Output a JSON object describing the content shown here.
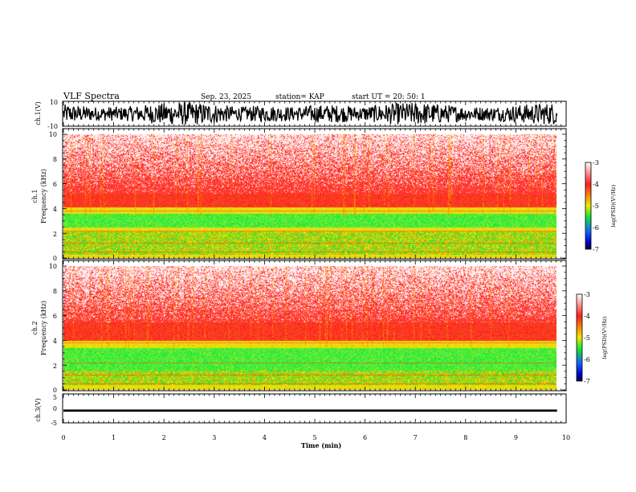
{
  "header": {
    "title": "VLF Spectra",
    "date": "Sep. 23, 2025",
    "station": "station= KAP",
    "start": "start  UT  =   20: 50: 1"
  },
  "colors": {
    "white": "#ffffff",
    "red": "#ff1e1e",
    "yellow": "#f0e600",
    "green": "#1ee632",
    "blue": "#0000c8",
    "navy": "#000046"
  },
  "chart_data": [
    {
      "type": "line",
      "name": "ch1-waveform",
      "ylabel": "ch.1(V)",
      "ylim": [
        -10,
        10
      ],
      "yticks": [
        "10",
        "-10"
      ],
      "x_range_min": [
        0,
        9.82
      ],
      "envelope_note": "dense oscillating waveform, amplitude mostly ~6-10 V"
    },
    {
      "type": "heatmap",
      "name": "ch1-spectrogram",
      "ylabel_line1": "ch.1",
      "ylabel_line2": "Frequency  (kHz)",
      "ylim": [
        0,
        10
      ],
      "yticks": [
        "0",
        "2",
        "4",
        "6",
        "8",
        "10"
      ],
      "x_range_min": [
        0,
        9.82
      ],
      "bands_khz": [
        {
          "from": 0.0,
          "to": 0.3,
          "color": "yellow"
        },
        {
          "from": 0.3,
          "to": 2.2,
          "color": "green-yellow"
        },
        {
          "from": 2.2,
          "to": 2.5,
          "color": "yellow"
        },
        {
          "from": 2.5,
          "to": 3.6,
          "color": "green"
        },
        {
          "from": 3.6,
          "to": 4.1,
          "color": "yellow"
        },
        {
          "from": 4.1,
          "to": 5.2,
          "color": "red"
        },
        {
          "from": 5.2,
          "to": 10.0,
          "color": "red-white"
        }
      ],
      "colorbar": {
        "label": "log(PSD)(V²/Hz)",
        "ticks": [
          "-3",
          "-4",
          "-5",
          "-6",
          "-7"
        ],
        "range": [
          -7,
          -3
        ]
      }
    },
    {
      "type": "heatmap",
      "name": "ch2-spectrogram",
      "ylabel_line1": "ch.2",
      "ylabel_line2": "Frequency  (kHz)",
      "ylim": [
        0,
        10
      ],
      "yticks": [
        "0",
        "2",
        "4",
        "6",
        "8",
        "10"
      ],
      "x_range_min": [
        0,
        9.82
      ],
      "bands_khz": [
        {
          "from": 0.0,
          "to": 0.4,
          "color": "yellow"
        },
        {
          "from": 0.4,
          "to": 1.6,
          "color": "green-yellow"
        },
        {
          "from": 1.6,
          "to": 3.4,
          "color": "green"
        },
        {
          "from": 3.4,
          "to": 4.0,
          "color": "yellow"
        },
        {
          "from": 4.0,
          "to": 5.5,
          "color": "red"
        },
        {
          "from": 5.5,
          "to": 10.0,
          "color": "red-white"
        }
      ],
      "colorbar": {
        "label": "log(PSD)(V²/Hz)",
        "ticks": [
          "-3",
          "-4",
          "-5",
          "-6",
          "-7"
        ],
        "range": [
          -7,
          -3
        ]
      }
    },
    {
      "type": "line",
      "name": "ch3-waveform",
      "ylabel": "ch.3(V)",
      "ylim": [
        -5,
        5
      ],
      "yticks": [
        "5",
        "0",
        "-5"
      ],
      "x_range_min": [
        0,
        9.82
      ],
      "level": [
        -1.2,
        -0.4
      ],
      "xlabel": "Time  (min)",
      "xlim": [
        0,
        10
      ],
      "xticks": [
        "0",
        "1",
        "2",
        "3",
        "4",
        "5",
        "6",
        "7",
        "8",
        "9",
        "10"
      ]
    }
  ]
}
